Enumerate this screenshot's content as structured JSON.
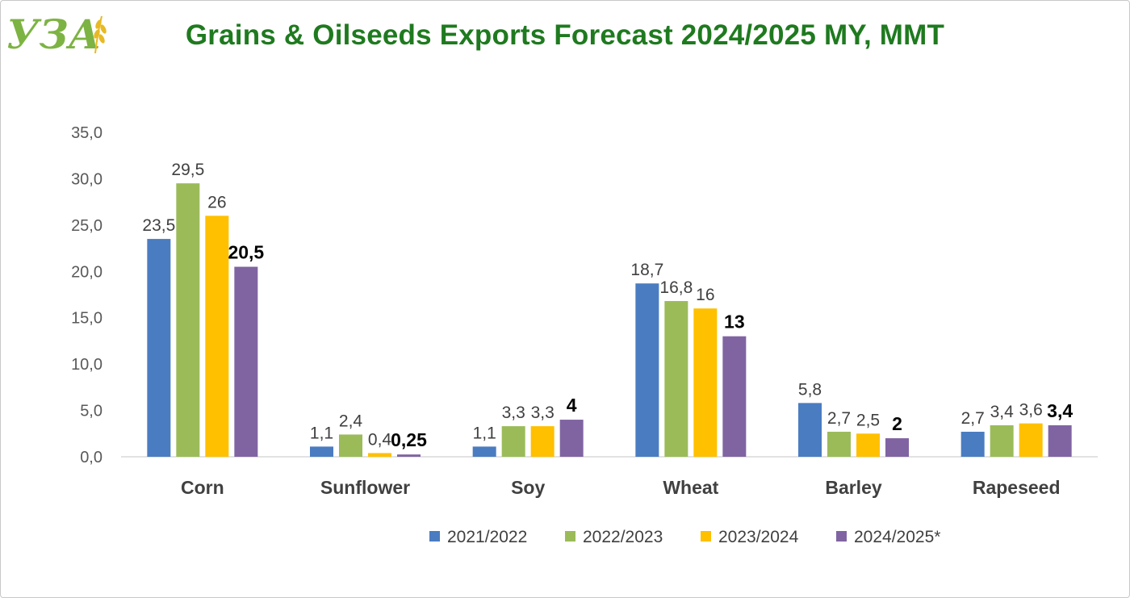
{
  "logo": {
    "text": "УЗА"
  },
  "chart_data": {
    "type": "bar",
    "title": "Grains & Oilseeds Exports Forecast 2024/2025 MY, MMT",
    "xlabel": "",
    "ylabel": "",
    "categories": [
      "Corn",
      "Sunflower",
      "Soy",
      "Wheat",
      "Barley",
      "Rapeseed"
    ],
    "series": [
      {
        "name": "2021/2022",
        "color": "#4a7cc1",
        "values": [
          23.5,
          1.1,
          1.1,
          18.7,
          5.8,
          2.7
        ],
        "labels": [
          "23,5",
          "1,1",
          "1,1",
          "18,7",
          "5,8",
          "2,7"
        ],
        "label_bold": false
      },
      {
        "name": "2022/2023",
        "color": "#9bbb59",
        "values": [
          29.5,
          2.4,
          3.3,
          16.8,
          2.7,
          3.4
        ],
        "labels": [
          "29,5",
          "2,4",
          "3,3",
          "16,8",
          "2,7",
          "3,4"
        ],
        "label_bold": false
      },
      {
        "name": "2023/2024",
        "color": "#ffc000",
        "values": [
          26,
          0.4,
          3.3,
          16,
          2.5,
          3.6
        ],
        "labels": [
          "26",
          "0,4",
          "3,3",
          "16",
          "2,5",
          "3,6"
        ],
        "label_bold": false
      },
      {
        "name": "2024/2025*",
        "color": "#8064a2",
        "values": [
          20.5,
          0.25,
          4,
          13,
          2,
          3.4
        ],
        "labels": [
          "20,5",
          "0,25",
          "4",
          "13",
          "2",
          "3,4"
        ],
        "label_bold": true
      }
    ],
    "ylim": [
      0,
      35
    ],
    "yticks": [
      "0,0",
      "5,0",
      "10,0",
      "15,0",
      "20,0",
      "25,0",
      "30,0",
      "35,0"
    ],
    "grid": false,
    "legend_position": "bottom"
  }
}
